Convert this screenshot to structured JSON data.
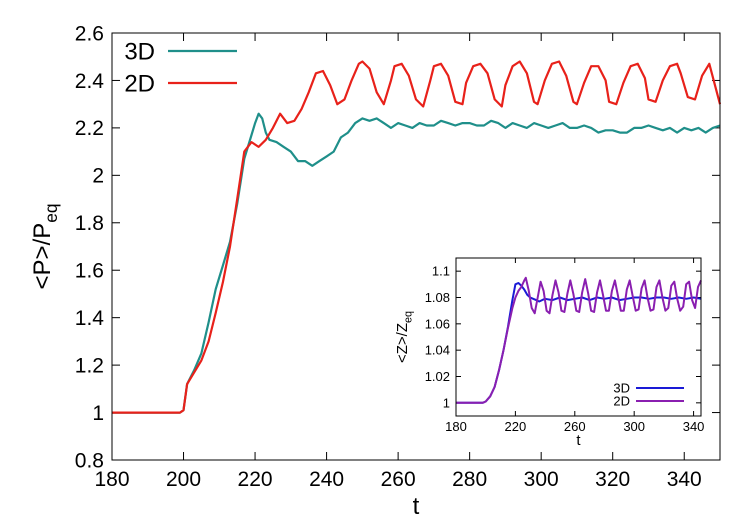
{
  "chart_data": [
    {
      "type": "line",
      "title": "",
      "xlabel": "t",
      "ylabel": "<P>/P",
      "ylabel_sub": "eq",
      "xlim": [
        180,
        350
      ],
      "ylim": [
        0.8,
        2.6
      ],
      "xticks": [
        180,
        200,
        220,
        240,
        260,
        280,
        300,
        320,
        340
      ],
      "yticks": [
        0.8,
        1,
        1.2,
        1.4,
        1.6,
        1.8,
        2,
        2.2,
        2.4,
        2.6
      ],
      "xtick_labels": [
        "180",
        "200",
        "220",
        "240",
        "260",
        "280",
        "300",
        "320",
        "340"
      ],
      "ytick_labels": [
        "0.8",
        "1",
        "1.2",
        "1.4",
        "1.6",
        "1.8",
        "2",
        "2.2",
        "2.4",
        "2.6"
      ],
      "legend_position": "top-left",
      "grid": false,
      "series": [
        {
          "name": "3D",
          "color": "#1f8f8a",
          "x": [
            180,
            185,
            190,
            195,
            199,
            200,
            201,
            203,
            205,
            207,
            209,
            211,
            213,
            215,
            217,
            219,
            220,
            221,
            222,
            223,
            224,
            226,
            228,
            230,
            232,
            234,
            236,
            238,
            240,
            242,
            244,
            246,
            248,
            250,
            252,
            254,
            256,
            258,
            260,
            262,
            264,
            266,
            268,
            270,
            272,
            274,
            276,
            278,
            280,
            282,
            284,
            286,
            288,
            290,
            292,
            294,
            296,
            298,
            300,
            302,
            304,
            306,
            308,
            310,
            312,
            314,
            316,
            318,
            320,
            322,
            324,
            326,
            328,
            330,
            332,
            334,
            336,
            338,
            340,
            342,
            344,
            346,
            348,
            350
          ],
          "y": [
            1.0,
            1.0,
            1.0,
            1.0,
            1.0,
            1.01,
            1.12,
            1.18,
            1.25,
            1.38,
            1.52,
            1.62,
            1.72,
            1.88,
            2.07,
            2.17,
            2.22,
            2.26,
            2.24,
            2.18,
            2.15,
            2.14,
            2.12,
            2.1,
            2.06,
            2.06,
            2.04,
            2.06,
            2.08,
            2.1,
            2.16,
            2.18,
            2.22,
            2.24,
            2.23,
            2.24,
            2.22,
            2.2,
            2.22,
            2.21,
            2.2,
            2.22,
            2.21,
            2.21,
            2.23,
            2.22,
            2.21,
            2.22,
            2.22,
            2.21,
            2.21,
            2.23,
            2.22,
            2.2,
            2.22,
            2.21,
            2.2,
            2.22,
            2.21,
            2.2,
            2.21,
            2.22,
            2.2,
            2.2,
            2.21,
            2.2,
            2.18,
            2.19,
            2.19,
            2.18,
            2.18,
            2.2,
            2.2,
            2.21,
            2.2,
            2.19,
            2.2,
            2.18,
            2.2,
            2.19,
            2.2,
            2.18,
            2.2,
            2.21
          ]
        },
        {
          "name": "2D",
          "color": "#e8211a",
          "x": [
            180,
            185,
            190,
            195,
            199,
            200,
            201,
            203,
            205,
            207,
            209,
            211,
            213,
            215,
            217,
            219,
            221,
            223,
            225,
            227,
            229,
            231,
            233,
            235,
            237,
            239,
            241,
            243,
            245,
            247,
            249,
            250,
            252,
            254,
            256,
            258,
            259,
            261,
            263,
            265,
            267,
            269,
            270,
            272,
            274,
            276,
            278,
            279,
            281,
            283,
            285,
            287,
            289,
            290,
            292,
            294,
            296,
            298,
            299,
            301,
            303,
            305,
            307,
            309,
            310,
            312,
            314,
            316,
            318,
            319,
            321,
            323,
            325,
            327,
            329,
            330,
            332,
            334,
            336,
            338,
            339,
            341,
            343,
            345,
            347,
            350
          ],
          "y": [
            1.0,
            1.0,
            1.0,
            1.0,
            1.0,
            1.01,
            1.12,
            1.17,
            1.22,
            1.3,
            1.42,
            1.55,
            1.7,
            1.9,
            2.1,
            2.14,
            2.12,
            2.15,
            2.2,
            2.26,
            2.22,
            2.23,
            2.28,
            2.35,
            2.43,
            2.44,
            2.38,
            2.3,
            2.32,
            2.4,
            2.47,
            2.48,
            2.45,
            2.35,
            2.3,
            2.4,
            2.46,
            2.47,
            2.42,
            2.32,
            2.29,
            2.4,
            2.46,
            2.47,
            2.42,
            2.31,
            2.3,
            2.39,
            2.46,
            2.47,
            2.43,
            2.32,
            2.29,
            2.38,
            2.46,
            2.48,
            2.43,
            2.31,
            2.3,
            2.4,
            2.47,
            2.48,
            2.42,
            2.31,
            2.3,
            2.39,
            2.46,
            2.46,
            2.4,
            2.31,
            2.3,
            2.39,
            2.46,
            2.47,
            2.41,
            2.32,
            2.31,
            2.4,
            2.46,
            2.47,
            2.43,
            2.33,
            2.32,
            2.42,
            2.47,
            2.3
          ]
        }
      ]
    },
    {
      "type": "line",
      "title": "",
      "xlabel": "t",
      "ylabel": "<Z>/Z",
      "ylabel_sub": "eq",
      "xlim": [
        180,
        345
      ],
      "ylim": [
        0.99,
        1.11
      ],
      "xticks": [
        180,
        220,
        260,
        300,
        340
      ],
      "yticks": [
        1,
        1.02,
        1.04,
        1.06,
        1.08,
        1.1
      ],
      "xtick_labels": [
        "180",
        "220",
        "260",
        "300",
        "340"
      ],
      "ytick_labels": [
        "1",
        "1.02",
        "1.04",
        "1.06",
        "1.08",
        "1.1"
      ],
      "legend_position": "bottom-right",
      "grid": false,
      "series": [
        {
          "name": "3D",
          "color": "#1a1ad6",
          "x": [
            180,
            190,
            198,
            200,
            203,
            206,
            209,
            212,
            215,
            218,
            220,
            222,
            224,
            226,
            228,
            230,
            232,
            234,
            236,
            238,
            240,
            245,
            250,
            255,
            260,
            265,
            270,
            275,
            280,
            285,
            290,
            295,
            300,
            305,
            310,
            315,
            320,
            325,
            330,
            335,
            340,
            345
          ],
          "y": [
            1.0,
            1.0,
            1.0,
            1.001,
            1.005,
            1.012,
            1.025,
            1.04,
            1.058,
            1.078,
            1.09,
            1.091,
            1.089,
            1.086,
            1.082,
            1.08,
            1.079,
            1.078,
            1.077,
            1.078,
            1.079,
            1.078,
            1.08,
            1.078,
            1.079,
            1.08,
            1.078,
            1.08,
            1.079,
            1.08,
            1.078,
            1.079,
            1.08,
            1.08,
            1.079,
            1.08,
            1.08,
            1.079,
            1.08,
            1.079,
            1.08,
            1.079
          ]
        },
        {
          "name": "2D",
          "color": "#8a1fb0",
          "x": [
            180,
            190,
            198,
            200,
            203,
            206,
            209,
            212,
            215,
            218,
            220,
            222,
            224,
            226,
            227,
            229,
            231,
            233,
            235,
            237,
            239,
            241,
            243,
            245,
            247,
            249,
            251,
            253,
            255,
            257,
            259,
            261,
            263,
            265,
            267,
            269,
            271,
            273,
            275,
            277,
            279,
            281,
            283,
            285,
            287,
            289,
            291,
            293,
            295,
            297,
            299,
            301,
            303,
            305,
            307,
            309,
            311,
            313,
            315,
            317,
            319,
            321,
            323,
            325,
            327,
            329,
            331,
            333,
            335,
            337,
            339,
            341,
            343,
            345
          ],
          "y": [
            1.0,
            1.0,
            1.0,
            1.001,
            1.005,
            1.012,
            1.025,
            1.04,
            1.057,
            1.072,
            1.08,
            1.085,
            1.088,
            1.093,
            1.095,
            1.085,
            1.072,
            1.068,
            1.08,
            1.092,
            1.085,
            1.07,
            1.068,
            1.082,
            1.093,
            1.084,
            1.07,
            1.069,
            1.083,
            1.093,
            1.083,
            1.07,
            1.069,
            1.084,
            1.094,
            1.083,
            1.07,
            1.069,
            1.084,
            1.093,
            1.082,
            1.07,
            1.07,
            1.085,
            1.093,
            1.082,
            1.07,
            1.07,
            1.086,
            1.093,
            1.081,
            1.07,
            1.071,
            1.087,
            1.093,
            1.08,
            1.07,
            1.071,
            1.088,
            1.093,
            1.08,
            1.07,
            1.072,
            1.089,
            1.092,
            1.079,
            1.07,
            1.073,
            1.09,
            1.092,
            1.078,
            1.072,
            1.088,
            1.093
          ]
        }
      ]
    }
  ]
}
